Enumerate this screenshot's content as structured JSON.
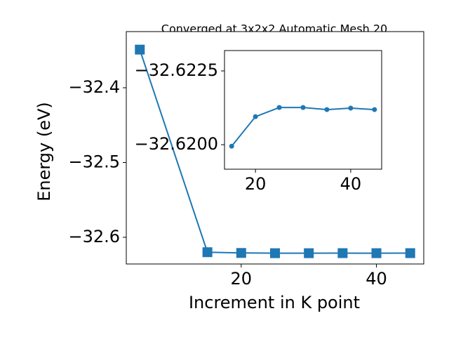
{
  "chart_data": [
    {
      "type": "line",
      "title": "Converged at 3x2x2 Automatic Mesh 20",
      "x_label": "Increment in K point",
      "y_label": "Energy (eV)",
      "x": [
        5,
        15,
        20,
        25,
        30,
        35,
        40,
        45
      ],
      "series": [
        {
          "color": "#1f77b4",
          "marker": "square",
          "values": [
            -32.349,
            -32.61995,
            -32.62095,
            -32.62126,
            -32.62126,
            -32.62119,
            -32.62124,
            -32.62119
          ]
        }
      ],
      "xlim": [
        3,
        47
      ],
      "xticks": [
        20,
        40
      ],
      "ylim": [
        -32.6357,
        -32.3249
      ],
      "yticks": [
        {
          "value": -32.4,
          "label": "−32.4"
        },
        {
          "value": -32.5,
          "label": "−32.5"
        },
        {
          "value": -32.6,
          "label": "−32.6"
        }
      ]
    },
    {
      "type": "line",
      "x": [
        15,
        20,
        25,
        30,
        35,
        40,
        45
      ],
      "series": [
        {
          "color": "#1f77b4",
          "marker": "circle",
          "values": [
            -32.61995,
            -32.62095,
            -32.62126,
            -32.62126,
            -32.62119,
            -32.62124,
            -32.62119
          ]
        }
      ],
      "xlim": [
        13.5,
        46.5
      ],
      "xticks": [
        20,
        40
      ],
      "ylim": [
        -32.61917,
        -32.62319
      ],
      "yticks": [
        {
          "value": -32.6225,
          "label": "−32.6225"
        },
        {
          "value": -32.62,
          "label": "−32.6200"
        }
      ]
    }
  ]
}
